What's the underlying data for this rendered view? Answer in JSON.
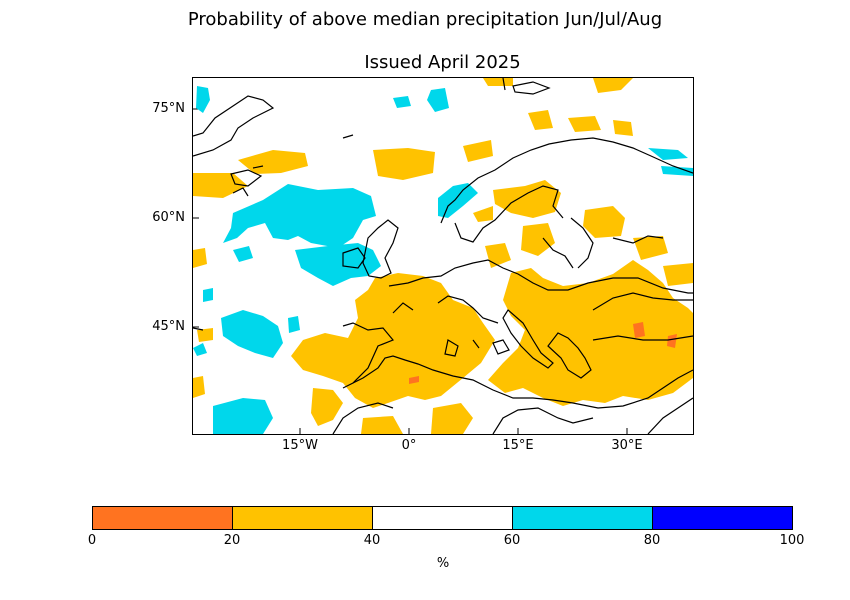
{
  "title": "Probability of above median precipitation Jun/Jul/Aug",
  "subtitle": "Issued April 2025",
  "map": {
    "latitude_labels": [
      "75°N",
      "60°N",
      "45°N"
    ],
    "longitude_labels": [
      "15°W",
      "0°",
      "15°E",
      "30°E"
    ],
    "latitudes": [
      75,
      60,
      45
    ],
    "longitudes": [
      -15,
      0,
      15,
      30
    ],
    "extent": {
      "lon_min": -30,
      "lon_max": 39,
      "lat_min": 30,
      "lat_max": 79
    }
  },
  "legend": {
    "ticks": [
      "0",
      "20",
      "40",
      "60",
      "80",
      "100"
    ],
    "unit": "%",
    "categories": [
      {
        "range": "0-20",
        "color": "#ff7320"
      },
      {
        "range": "20-40",
        "color": "#ffc200"
      },
      {
        "range": "40-60",
        "color": "#ffffff"
      },
      {
        "range": "60-80",
        "color": "#00d7eb"
      },
      {
        "range": "80-100",
        "color": "#0000ff"
      }
    ]
  },
  "colors": {
    "below": "#ffc200",
    "well_below": "#ff7320",
    "above": "#00d7eb",
    "well_above": "#0000ff",
    "coastline": "#000000"
  }
}
